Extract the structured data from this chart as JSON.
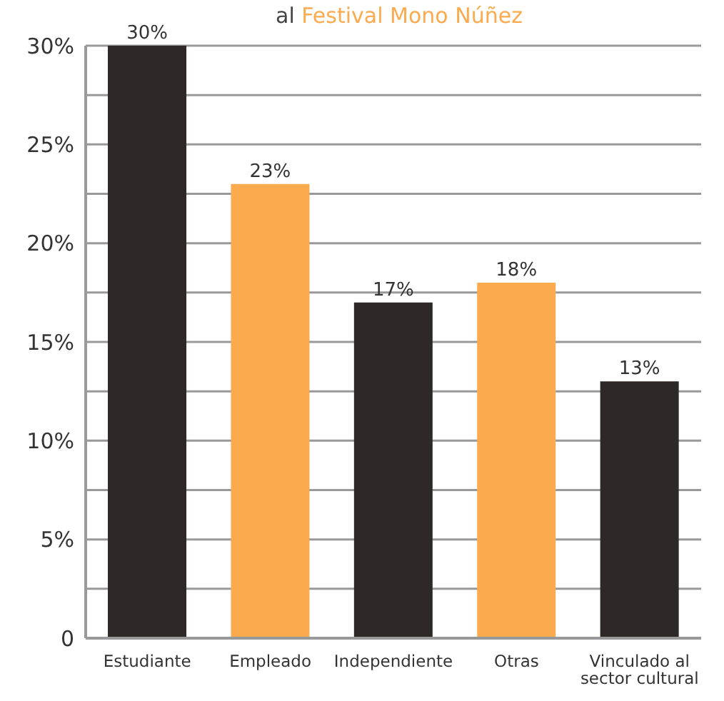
{
  "chart_data": {
    "type": "bar",
    "title": "al Festival Mono Núñez",
    "categories": [
      "Estudiante",
      "Empleado",
      "Independiente",
      "Otras",
      "Vinculado al sector cultural"
    ],
    "values": [
      30,
      23,
      17,
      18,
      13
    ],
    "colors": [
      "#2e2926",
      "#fcaa4e",
      "#2e2926",
      "#fcaa4e",
      "#2e2926"
    ],
    "value_labels": [
      "30%",
      "23%",
      "17%",
      "18%",
      "13%"
    ],
    "ylim": [
      0,
      30
    ],
    "yticks": [
      {
        "value": 0,
        "label": "0"
      },
      {
        "value": 2.5,
        "label": null
      },
      {
        "value": 5,
        "label": "5%"
      },
      {
        "value": 7.5,
        "label": null
      },
      {
        "value": 10,
        "label": "10%"
      },
      {
        "value": 12.5,
        "label": null
      },
      {
        "value": 15,
        "label": "15%"
      },
      {
        "value": 17.5,
        "label": null
      },
      {
        "value": 20,
        "label": "20%"
      },
      {
        "value": 22.5,
        "label": null
      },
      {
        "value": 25,
        "label": "25%"
      },
      {
        "value": 27.5,
        "label": null
      },
      {
        "value": 30,
        "label": "30%"
      }
    ],
    "grid": "y"
  }
}
